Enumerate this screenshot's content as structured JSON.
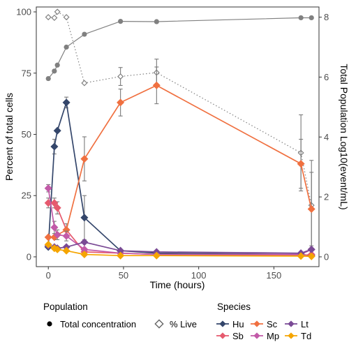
{
  "chart_data": {
    "type": "line",
    "xlabel": "Time (hours)",
    "ylabel": "Percent of total cells",
    "y2label": "Total Population Log10(event/mL)",
    "xlim": [
      -8,
      180
    ],
    "ylim": [
      -4,
      102
    ],
    "y2lim": [
      -0.327,
      8.34
    ],
    "xticks": [
      "0",
      "50",
      "100",
      "150"
    ],
    "xtick_values": [
      0,
      50,
      100,
      150
    ],
    "yticks": [
      "0",
      "25",
      "50",
      "75",
      "100"
    ],
    "ytick_values": [
      0,
      25,
      50,
      75,
      100
    ],
    "y2ticks": [
      "0",
      "2",
      "4",
      "6",
      "8"
    ],
    "y2tick_values": [
      0,
      2,
      4,
      6,
      8
    ],
    "grid": false,
    "legend_position": "bottom",
    "total_concentration": {
      "name": "Total concentration",
      "axis": "right",
      "color": "#808080",
      "x": [
        0,
        4,
        6,
        12,
        24,
        48,
        72,
        168,
        175
      ],
      "y": [
        5.95,
        6.2,
        6.4,
        7.0,
        7.43,
        7.86,
        7.85,
        7.98,
        7.98
      ]
    },
    "percent_live": {
      "name": "% Live",
      "axis": "right",
      "color": "#808080",
      "x": [
        0,
        4,
        6,
        12,
        24,
        48,
        72,
        168,
        175
      ],
      "y": [
        8.0,
        7.98,
        8.18,
        8.0,
        5.8,
        6.02,
        6.15,
        3.47,
        1.72
      ],
      "err": [
        0,
        0,
        0,
        0,
        0,
        0.3,
        0.45,
        1.27,
        1.5
      ]
    },
    "species_series": [
      {
        "name": "Hu",
        "color": "#34466B",
        "x": [
          0,
          4,
          6,
          12,
          24,
          48,
          72,
          168,
          175
        ],
        "y": [
          4,
          45,
          51.5,
          63,
          16,
          2.5,
          1.5,
          1,
          0.5
        ],
        "err": [
          0,
          3,
          0,
          2.2,
          9,
          0,
          0,
          0,
          0
        ]
      },
      {
        "name": "Sb",
        "color": "#E65A6E",
        "x": [
          0,
          4,
          6,
          12,
          24,
          48,
          72,
          168,
          175
        ],
        "y": [
          22,
          22,
          20,
          11,
          2,
          1.5,
          1,
          0.5,
          1
        ],
        "err": [
          2,
          2,
          2.5,
          2.5,
          0,
          0,
          0,
          0,
          0
        ]
      },
      {
        "name": "Sc",
        "color": "#F07040",
        "x": [
          0,
          4,
          6,
          12,
          24,
          48,
          72,
          168,
          175
        ],
        "y": [
          8,
          8,
          9,
          11,
          40,
          63,
          70,
          38,
          19.5
        ],
        "err": [
          0,
          0,
          0,
          0,
          9,
          5.5,
          7.5,
          10,
          15
        ]
      },
      {
        "name": "Mp",
        "color": "#C25AA8",
        "x": [
          0,
          4,
          6,
          12,
          24,
          48,
          72,
          168,
          175
        ],
        "y": [
          28,
          12,
          9,
          8.5,
          3,
          1.5,
          1,
          1,
          3
        ],
        "err": [
          1.5,
          2.5,
          2,
          2,
          0,
          0,
          0,
          0,
          0
        ]
      },
      {
        "name": "Lt",
        "color": "#7A4A95",
        "x": [
          0,
          4,
          6,
          12,
          24,
          48,
          72,
          168,
          175
        ],
        "y": [
          4.5,
          4,
          3.5,
          4,
          6,
          2.5,
          2,
          1.5,
          3
        ],
        "err": [
          0,
          0,
          0,
          0,
          0,
          0,
          0,
          0,
          0
        ]
      },
      {
        "name": "Td",
        "color": "#F5A500",
        "x": [
          0,
          4,
          6,
          12,
          24,
          48,
          72,
          168,
          175
        ],
        "y": [
          5,
          3.5,
          3,
          2.5,
          1,
          0.5,
          0.5,
          0.3,
          0.2
        ],
        "err": [
          0,
          0,
          0,
          0,
          0,
          0,
          0,
          0,
          0
        ]
      }
    ]
  },
  "legend": {
    "population_title": "Population",
    "population_items": [
      "Total concentration",
      "% Live"
    ],
    "species_title": "Species",
    "species_items": [
      "Hu",
      "Sc",
      "Lt",
      "Sb",
      "Mp",
      "Td"
    ]
  }
}
